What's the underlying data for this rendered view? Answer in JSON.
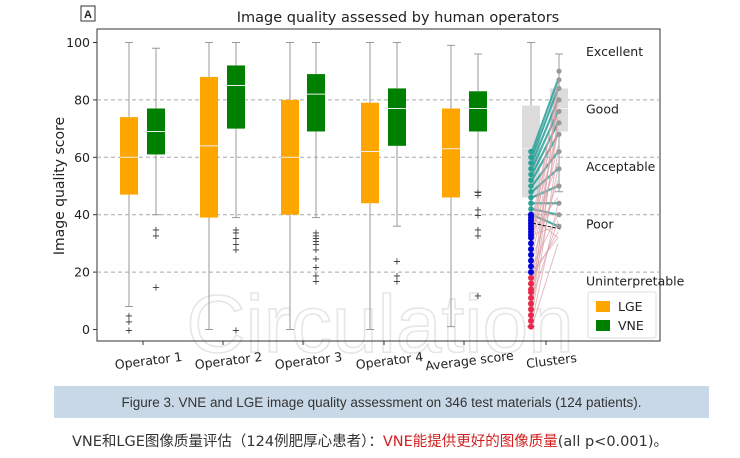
{
  "panel_label": "A",
  "chart_data": {
    "type": "box",
    "title": "Image quality assessed by human operators",
    "xlabel": "",
    "ylabel": "Image quality score",
    "ylim": [
      -4,
      104
    ],
    "yticks": [
      0,
      20,
      40,
      60,
      80,
      100
    ],
    "grid": "horizontal dashed at 20, 40, 60, 80",
    "categories": [
      "Operator 1",
      "Operator 2",
      "Operator 3",
      "Operator 4",
      "Average score",
      "Clusters"
    ],
    "legend": {
      "placement": "lower-right",
      "entries": [
        {
          "name": "LGE",
          "color": "#ffa500"
        },
        {
          "name": "VNE",
          "color": "#008000"
        }
      ]
    },
    "quality_levels": [
      {
        "label": "Excellent",
        "y": 97
      },
      {
        "label": "Good",
        "y": 77
      },
      {
        "label": "Acceptable",
        "y": 57
      },
      {
        "label": "Poor",
        "y": 37
      },
      {
        "label": "Uninterpretable",
        "y": 17
      }
    ],
    "series": [
      {
        "name": "LGE",
        "color": "#ffa500",
        "boxes": [
          {
            "whisker_low": 8,
            "q1": 47,
            "median": 60,
            "q3": 74,
            "whisker_high": 100,
            "outliers": [
              0,
              3,
              5
            ]
          },
          {
            "whisker_low": 0,
            "q1": 39,
            "median": 64,
            "q3": 88,
            "whisker_high": 100,
            "outliers": []
          },
          {
            "whisker_low": 0,
            "q1": 40,
            "median": 60,
            "q3": 80,
            "whisker_high": 100,
            "outliers": []
          },
          {
            "whisker_low": 0,
            "q1": 44,
            "median": 62,
            "q3": 79,
            "whisker_high": 100,
            "outliers": []
          },
          {
            "whisker_low": 1,
            "q1": 46,
            "median": 63,
            "q3": 77,
            "whisker_high": 99,
            "outliers": []
          }
        ]
      },
      {
        "name": "VNE",
        "color": "#008000",
        "boxes": [
          {
            "whisker_low": 40,
            "q1": 61,
            "median": 69,
            "q3": 77,
            "whisker_high": 98,
            "outliers": [
              15,
              33,
              35
            ]
          },
          {
            "whisker_low": 39,
            "q1": 70,
            "median": 85,
            "q3": 92,
            "whisker_high": 100,
            "outliers": [
              0,
              28,
              30,
              32,
              34,
              35
            ]
          },
          {
            "whisker_low": 39,
            "q1": 69,
            "median": 82,
            "q3": 89,
            "whisker_high": 100,
            "outliers": [
              17,
              19,
              22,
              25,
              28,
              30,
              31,
              32,
              33,
              34
            ]
          },
          {
            "whisker_low": 36,
            "q1": 64,
            "median": 77,
            "q3": 84,
            "whisker_high": 100,
            "outliers": [
              17,
              19,
              24
            ]
          },
          {
            "whisker_low": 48,
            "q1": 69,
            "median": 77,
            "q3": 83,
            "whisker_high": 96,
            "outliers": [
              12,
              33,
              35,
              40,
              42,
              47,
              48
            ]
          }
        ]
      }
    ],
    "clusters": {
      "lge_box": {
        "whisker_low": 1,
        "q1": 46,
        "median": 63,
        "q3": 78,
        "whisker_high": 100,
        "color": "#dcdcdc"
      },
      "vne_box": {
        "whisker_low": 48,
        "q1": 69,
        "median": 77,
        "q3": 84,
        "whisker_high": 96,
        "color": "#dcdcdc"
      },
      "poor_points": [
        20,
        22,
        24,
        26,
        28,
        30,
        32,
        33,
        34,
        35,
        36,
        37,
        38,
        39,
        40
      ],
      "uninterpretable_points": [
        1,
        3,
        5,
        7,
        9,
        11,
        13,
        14,
        16,
        18
      ],
      "lge_points": [
        40,
        42,
        44,
        46,
        48,
        50,
        52,
        54,
        56,
        58,
        60,
        62
      ],
      "vne_points": [
        36,
        40,
        44,
        50,
        56,
        62,
        68,
        72,
        76,
        80,
        84,
        87,
        90
      ],
      "cluster_colors": {
        "poor": "#0000dd",
        "uninterpretable": "#e8294a",
        "teal": "#2aa198",
        "pink": "#d9a0a8"
      }
    }
  },
  "watermark": "Circulation",
  "caption": "Figure 3. VNE and LGE image quality assessment on 346 test materials (124 patients).",
  "footnote": {
    "prefix": "VNE和LGE图像质量评估（124例肥厚心患者）：",
    "highlight": "VNE能提供更好的图像质量",
    "suffix": " (all p<0.001)。"
  }
}
